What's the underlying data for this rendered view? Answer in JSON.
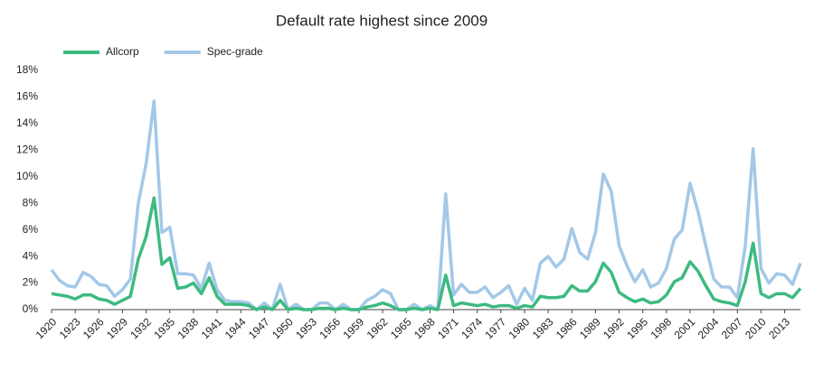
{
  "chart_data": {
    "type": "line",
    "title": "Default rate highest since 2009",
    "x": [
      1920,
      1921,
      1922,
      1923,
      1924,
      1925,
      1926,
      1927,
      1928,
      1929,
      1930,
      1931,
      1932,
      1933,
      1934,
      1935,
      1936,
      1937,
      1938,
      1939,
      1940,
      1941,
      1942,
      1943,
      1944,
      1945,
      1946,
      1947,
      1948,
      1949,
      1950,
      1951,
      1952,
      1953,
      1954,
      1955,
      1956,
      1957,
      1958,
      1959,
      1960,
      1961,
      1962,
      1963,
      1964,
      1965,
      1966,
      1967,
      1968,
      1969,
      1970,
      1971,
      1972,
      1973,
      1974,
      1975,
      1976,
      1977,
      1978,
      1979,
      1980,
      1981,
      1982,
      1983,
      1984,
      1985,
      1986,
      1987,
      1988,
      1989,
      1990,
      1991,
      1992,
      1993,
      1994,
      1995,
      1996,
      1997,
      1998,
      1999,
      2000,
      2001,
      2002,
      2003,
      2004,
      2005,
      2006,
      2007,
      2008,
      2009,
      2010,
      2011,
      2012,
      2013,
      2014,
      2015
    ],
    "series": [
      {
        "name": "Allcorp",
        "color": "#3dba80",
        "values": [
          1.2,
          1.1,
          1.0,
          0.8,
          1.1,
          1.1,
          0.8,
          0.7,
          0.4,
          0.7,
          1.0,
          3.8,
          5.5,
          8.4,
          3.4,
          3.9,
          1.6,
          1.7,
          2.0,
          1.2,
          2.4,
          1.0,
          0.4,
          0.4,
          0.4,
          0.3,
          0.0,
          0.2,
          0.0,
          0.7,
          0.0,
          0.1,
          0.0,
          0.0,
          0.1,
          0.1,
          0.0,
          0.1,
          0.0,
          0.0,
          0.2,
          0.3,
          0.5,
          0.3,
          0.0,
          0.0,
          0.1,
          0.0,
          0.1,
          0.0,
          2.6,
          0.3,
          0.5,
          0.4,
          0.3,
          0.4,
          0.2,
          0.3,
          0.3,
          0.1,
          0.3,
          0.2,
          1.0,
          0.9,
          0.9,
          1.0,
          1.8,
          1.4,
          1.4,
          2.1,
          3.5,
          2.8,
          1.3,
          0.9,
          0.6,
          0.8,
          0.5,
          0.6,
          1.1,
          2.1,
          2.4,
          3.6,
          2.9,
          1.8,
          0.8,
          0.6,
          0.5,
          0.3,
          2.1,
          5.0,
          1.2,
          0.9,
          1.2,
          1.2,
          0.9,
          1.6
        ]
      },
      {
        "name": "Spec-grade",
        "color": "#a3c8e8",
        "values": [
          3.0,
          2.2,
          1.8,
          1.7,
          2.8,
          2.5,
          1.9,
          1.8,
          1.0,
          1.5,
          2.3,
          8.0,
          11.0,
          15.7,
          5.8,
          6.2,
          2.7,
          2.7,
          2.6,
          1.6,
          3.5,
          1.5,
          0.7,
          0.6,
          0.6,
          0.5,
          0.0,
          0.5,
          0.0,
          1.9,
          0.0,
          0.4,
          0.0,
          0.0,
          0.5,
          0.5,
          0.0,
          0.4,
          0.0,
          0.0,
          0.7,
          1.0,
          1.5,
          1.2,
          0.0,
          0.0,
          0.4,
          0.0,
          0.3,
          0.0,
          8.7,
          1.1,
          1.9,
          1.3,
          1.3,
          1.7,
          0.9,
          1.3,
          1.8,
          0.4,
          1.6,
          0.7,
          3.5,
          4.0,
          3.2,
          3.8,
          6.1,
          4.3,
          3.8,
          5.8,
          10.2,
          8.9,
          4.8,
          3.3,
          2.1,
          3.0,
          1.7,
          2.0,
          3.1,
          5.3,
          6.0,
          9.5,
          7.4,
          4.8,
          2.3,
          1.7,
          1.7,
          0.9,
          4.8,
          12.1,
          3.1,
          2.0,
          2.7,
          2.6,
          1.9,
          3.5
        ]
      }
    ],
    "xlim": [
      1920,
      2015
    ],
    "xticks": [
      1920,
      1923,
      1926,
      1929,
      1932,
      1935,
      1938,
      1941,
      1944,
      1947,
      1950,
      1953,
      1956,
      1959,
      1962,
      1965,
      1968,
      1971,
      1974,
      1977,
      1980,
      1983,
      1986,
      1989,
      1992,
      1995,
      1998,
      2001,
      2004,
      2007,
      2010,
      2013
    ],
    "ylim": [
      0,
      18
    ],
    "yticks": [
      {
        "value": 0,
        "label": "0%"
      },
      {
        "value": 2,
        "label": "2%"
      },
      {
        "value": 4,
        "label": "4%"
      },
      {
        "value": 6,
        "label": "6%"
      },
      {
        "value": 8,
        "label": "8%"
      },
      {
        "value": 10,
        "label": "10%"
      },
      {
        "value": 12,
        "label": "12%"
      },
      {
        "value": 14,
        "label": "14%"
      },
      {
        "value": 16,
        "label": "16%"
      },
      {
        "value": 18,
        "label": "18%"
      }
    ],
    "legend": "top-left",
    "grid": false
  }
}
